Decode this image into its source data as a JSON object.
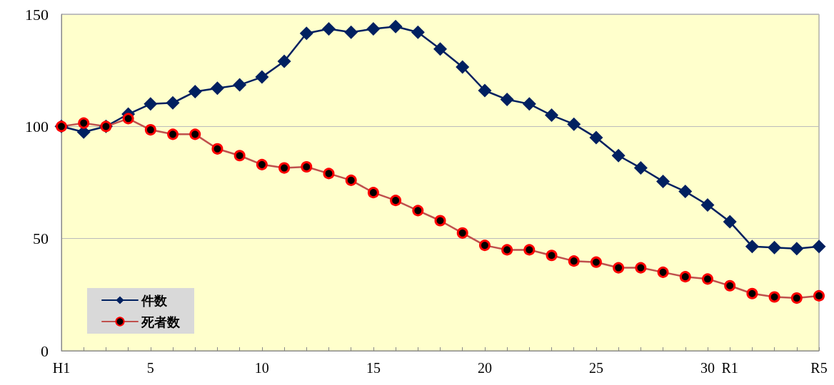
{
  "chart_data": {
    "type": "line",
    "categories": [
      "H1",
      null,
      null,
      null,
      "5",
      null,
      null,
      null,
      null,
      "10",
      null,
      null,
      null,
      null,
      "15",
      null,
      null,
      null,
      null,
      "20",
      null,
      null,
      null,
      null,
      "25",
      null,
      null,
      null,
      null,
      "30",
      "R1",
      null,
      null,
      null,
      "R5"
    ],
    "series": [
      {
        "name": "件数",
        "color": "#002060",
        "marker": "diamond",
        "values": [
          100,
          97.5,
          100,
          105.5,
          110,
          110.5,
          115.5,
          117,
          118.5,
          122,
          129,
          141.5,
          143.5,
          142,
          143.5,
          144.5,
          142,
          134.5,
          126.5,
          116,
          112,
          110,
          105,
          101,
          95,
          87,
          81.5,
          75.5,
          71,
          65,
          57.5,
          46.5,
          46,
          45.5,
          46.5
        ]
      },
      {
        "name": "死者数",
        "color": "#c0504d",
        "marker": "circle",
        "values": [
          100,
          101.5,
          100,
          103.5,
          98.5,
          96.5,
          96.5,
          90,
          87,
          83,
          81.5,
          82,
          79,
          76,
          70.5,
          67,
          62.5,
          58,
          52.5,
          47,
          45,
          45,
          42.5,
          40,
          39.5,
          37,
          37,
          35,
          33,
          32,
          29,
          25.5,
          24,
          23.5,
          24.5
        ]
      }
    ],
    "ylim": [
      0,
      150
    ],
    "yticks": [
      0,
      50,
      100,
      150
    ],
    "grid": "y",
    "legend": "bottom left",
    "line_style": "solid"
  }
}
